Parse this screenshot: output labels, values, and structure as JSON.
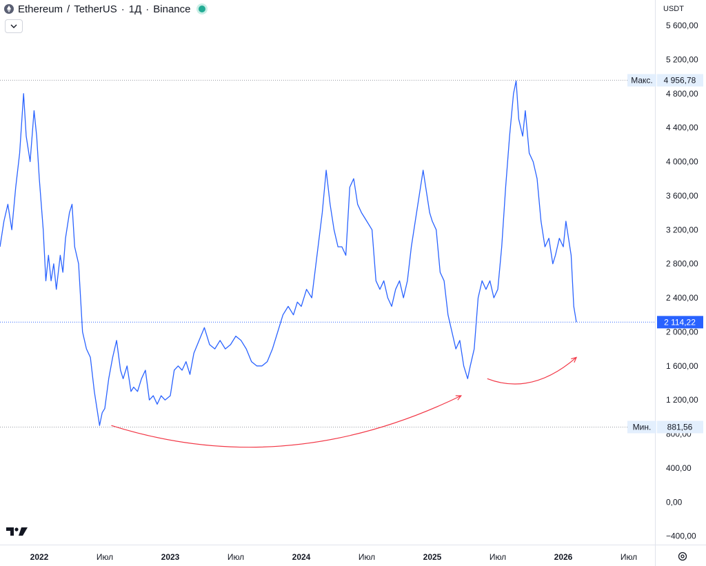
{
  "header": {
    "symbol": "Ethereum",
    "separator": "/",
    "quote": "TetherUS",
    "interval": "1Д",
    "exchange": "Binance",
    "full_title": "Ethereum / TetherUS · 1Д · Binance"
  },
  "price_axis": {
    "currency": "USDT"
  },
  "markers": {
    "max_label": "Макс.",
    "max_value": "4 956,78",
    "min_label": "Мин.",
    "min_value": "881,56",
    "last_value": "2 114,22"
  },
  "colors": {
    "line": "#2962ff",
    "last_price_badge": "#2962ff",
    "arrow": "#f23645",
    "grid_dotted": "#9598a1",
    "marker_bg": "#e3effd"
  },
  "icons": {
    "logo": "tradingview-logo-icon",
    "settings": "gear-icon",
    "collapse": "chevron-down-icon",
    "symbol": "ethereum-coin-icon",
    "status": "market-status-dot-icon"
  },
  "chart_data": {
    "type": "line",
    "title": "Ethereum / TetherUS · 1Д · Binance",
    "series": [
      {
        "values": [
          [
            2021.7,
            3000
          ],
          [
            2021.73,
            3300
          ],
          [
            2021.76,
            3500
          ],
          [
            2021.79,
            3200
          ],
          [
            2021.82,
            3700
          ],
          [
            2021.85,
            4100
          ],
          [
            2021.88,
            4800
          ],
          [
            2021.9,
            4300
          ],
          [
            2021.93,
            4000
          ],
          [
            2021.96,
            4600
          ],
          [
            2021.98,
            4300
          ],
          [
            2022.0,
            3800
          ],
          [
            2022.03,
            3200
          ],
          [
            2022.05,
            2600
          ],
          [
            2022.07,
            2900
          ],
          [
            2022.09,
            2600
          ],
          [
            2022.11,
            2800
          ],
          [
            2022.13,
            2500
          ],
          [
            2022.16,
            2900
          ],
          [
            2022.18,
            2700
          ],
          [
            2022.2,
            3100
          ],
          [
            2022.23,
            3400
          ],
          [
            2022.25,
            3500
          ],
          [
            2022.27,
            3000
          ],
          [
            2022.3,
            2800
          ],
          [
            2022.33,
            2000
          ],
          [
            2022.36,
            1800
          ],
          [
            2022.39,
            1700
          ],
          [
            2022.42,
            1300
          ],
          [
            2022.44,
            1100
          ],
          [
            2022.46,
            900
          ],
          [
            2022.48,
            1050
          ],
          [
            2022.5,
            1100
          ],
          [
            2022.53,
            1450
          ],
          [
            2022.56,
            1700
          ],
          [
            2022.59,
            1900
          ],
          [
            2022.62,
            1550
          ],
          [
            2022.64,
            1450
          ],
          [
            2022.67,
            1600
          ],
          [
            2022.7,
            1300
          ],
          [
            2022.72,
            1350
          ],
          [
            2022.75,
            1300
          ],
          [
            2022.78,
            1450
          ],
          [
            2022.81,
            1550
          ],
          [
            2022.84,
            1200
          ],
          [
            2022.87,
            1250
          ],
          [
            2022.9,
            1150
          ],
          [
            2022.93,
            1250
          ],
          [
            2022.96,
            1200
          ],
          [
            2023.0,
            1250
          ],
          [
            2023.03,
            1550
          ],
          [
            2023.06,
            1600
          ],
          [
            2023.09,
            1550
          ],
          [
            2023.12,
            1650
          ],
          [
            2023.15,
            1500
          ],
          [
            2023.18,
            1750
          ],
          [
            2023.22,
            1900
          ],
          [
            2023.26,
            2050
          ],
          [
            2023.3,
            1850
          ],
          [
            2023.34,
            1800
          ],
          [
            2023.38,
            1900
          ],
          [
            2023.42,
            1800
          ],
          [
            2023.46,
            1850
          ],
          [
            2023.5,
            1950
          ],
          [
            2023.54,
            1900
          ],
          [
            2023.58,
            1800
          ],
          [
            2023.62,
            1650
          ],
          [
            2023.66,
            1600
          ],
          [
            2023.7,
            1600
          ],
          [
            2023.74,
            1650
          ],
          [
            2023.78,
            1800
          ],
          [
            2023.82,
            2000
          ],
          [
            2023.86,
            2200
          ],
          [
            2023.9,
            2300
          ],
          [
            2023.94,
            2200
          ],
          [
            2023.97,
            2350
          ],
          [
            2024.0,
            2300
          ],
          [
            2024.04,
            2500
          ],
          [
            2024.08,
            2400
          ],
          [
            2024.12,
            2900
          ],
          [
            2024.16,
            3400
          ],
          [
            2024.19,
            3900
          ],
          [
            2024.22,
            3500
          ],
          [
            2024.25,
            3200
          ],
          [
            2024.28,
            3000
          ],
          [
            2024.31,
            3000
          ],
          [
            2024.34,
            2900
          ],
          [
            2024.37,
            3700
          ],
          [
            2024.4,
            3800
          ],
          [
            2024.43,
            3500
          ],
          [
            2024.46,
            3400
          ],
          [
            2024.5,
            3300
          ],
          [
            2024.54,
            3200
          ],
          [
            2024.57,
            2600
          ],
          [
            2024.6,
            2500
          ],
          [
            2024.63,
            2600
          ],
          [
            2024.66,
            2400
          ],
          [
            2024.69,
            2300
          ],
          [
            2024.72,
            2500
          ],
          [
            2024.75,
            2600
          ],
          [
            2024.78,
            2400
          ],
          [
            2024.81,
            2600
          ],
          [
            2024.84,
            3000
          ],
          [
            2024.87,
            3300
          ],
          [
            2024.9,
            3600
          ],
          [
            2024.93,
            3900
          ],
          [
            2024.95,
            3700
          ],
          [
            2024.98,
            3400
          ],
          [
            2025.0,
            3300
          ],
          [
            2025.03,
            3200
          ],
          [
            2025.06,
            2700
          ],
          [
            2025.09,
            2600
          ],
          [
            2025.12,
            2200
          ],
          [
            2025.15,
            2000
          ],
          [
            2025.18,
            1800
          ],
          [
            2025.21,
            1900
          ],
          [
            2025.24,
            1600
          ],
          [
            2025.27,
            1450
          ],
          [
            2025.29,
            1600
          ],
          [
            2025.32,
            1800
          ],
          [
            2025.35,
            2400
          ],
          [
            2025.38,
            2600
          ],
          [
            2025.41,
            2500
          ],
          [
            2025.44,
            2600
          ],
          [
            2025.47,
            2400
          ],
          [
            2025.5,
            2500
          ],
          [
            2025.53,
            3000
          ],
          [
            2025.56,
            3700
          ],
          [
            2025.59,
            4300
          ],
          [
            2025.62,
            4800
          ],
          [
            2025.64,
            4950
          ],
          [
            2025.66,
            4500
          ],
          [
            2025.69,
            4300
          ],
          [
            2025.71,
            4600
          ],
          [
            2025.74,
            4100
          ],
          [
            2025.77,
            4000
          ],
          [
            2025.8,
            3800
          ],
          [
            2025.83,
            3300
          ],
          [
            2025.86,
            3000
          ],
          [
            2025.89,
            3100
          ],
          [
            2025.92,
            2800
          ],
          [
            2025.94,
            2900
          ],
          [
            2025.97,
            3100
          ],
          [
            2026.0,
            3000
          ],
          [
            2026.02,
            3300
          ],
          [
            2026.04,
            3100
          ],
          [
            2026.06,
            2900
          ],
          [
            2026.08,
            2300
          ],
          [
            2026.1,
            2114
          ]
        ]
      }
    ],
    "x_ticks": [
      "2022",
      "Июл",
      "2023",
      "Июл",
      "2024",
      "Июл",
      "2025",
      "Июл",
      "2026",
      "Июл"
    ],
    "x_tick_values": [
      2022.0,
      2022.5,
      2023.0,
      2023.5,
      2024.0,
      2024.5,
      2025.0,
      2025.5,
      2026.0,
      2026.5
    ],
    "y_ticks": [
      "5 600,00",
      "5 200,00",
      "4 800,00",
      "4 400,00",
      "4 000,00",
      "3 600,00",
      "3 200,00",
      "2 800,00",
      "2 400,00",
      "2 000,00",
      "1 600,00",
      "1 200,00",
      "800,00",
      "400,00",
      "0,00",
      "−400,00"
    ],
    "y_tick_values": [
      5600,
      5200,
      4800,
      4400,
      4000,
      3600,
      3200,
      2800,
      2400,
      2000,
      1600,
      1200,
      800,
      400,
      0,
      -400
    ],
    "xlim": [
      2021.7,
      2026.7
    ],
    "ylim": [
      -500,
      5900
    ],
    "max": 4956.78,
    "min": 881.56,
    "last": 2114.22,
    "grid": false,
    "annotations": [
      {
        "type": "arrow",
        "color": "#f23645",
        "from": [
          2022.55,
          900
        ],
        "to": [
          2025.22,
          1250
        ]
      },
      {
        "type": "arrow",
        "color": "#f23645",
        "from": [
          2025.42,
          1450
        ],
        "to": [
          2026.1,
          1700
        ]
      }
    ]
  }
}
